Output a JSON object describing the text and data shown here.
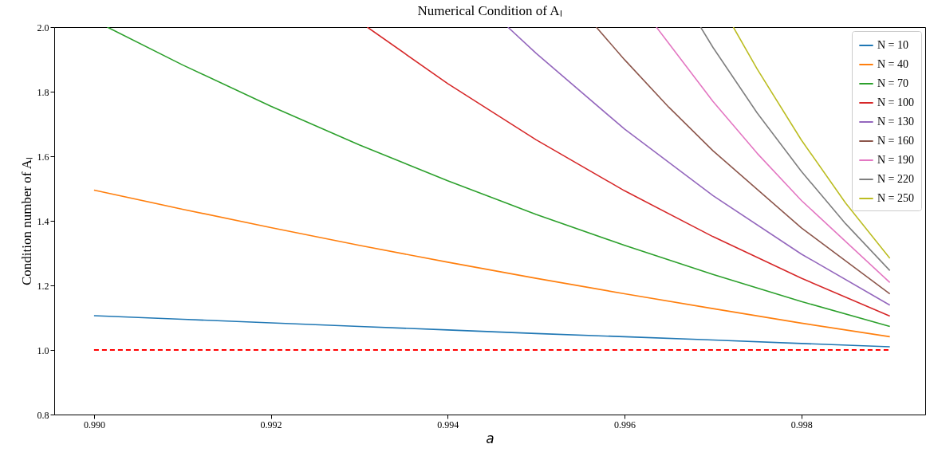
{
  "chart_data": {
    "type": "line",
    "title": "Numerical Condition of Aₗ",
    "xlabel": "a",
    "ylabel": "Condition number of Aₗ",
    "xlim": [
      0.98955,
      0.9994
    ],
    "ylim": [
      0.8,
      2.0
    ],
    "xticks": [
      {
        "value": 0.99,
        "label": "0.990"
      },
      {
        "value": 0.992,
        "label": "0.992"
      },
      {
        "value": 0.994,
        "label": "0.994"
      },
      {
        "value": 0.996,
        "label": "0.996"
      },
      {
        "value": 0.998,
        "label": "0.998"
      }
    ],
    "yticks": [
      0.8,
      {
        "value": 1.0,
        "label": "1.0"
      },
      1.2,
      1.4,
      1.6,
      1.8,
      {
        "value": 2.0,
        "label": "2.0"
      }
    ],
    "grid": false,
    "legend": "top right",
    "marker": "none",
    "line_style": "solid",
    "series": [
      {
        "name": "N = 10",
        "color": "#1f77b4",
        "x": [
          0.99,
          0.991,
          0.992,
          0.993,
          0.994,
          0.995,
          0.996,
          0.997,
          0.998,
          0.999
        ],
        "values": [
          1.106,
          1.095,
          1.084,
          1.073,
          1.062,
          1.051,
          1.041,
          1.031,
          1.02,
          1.01
        ]
      },
      {
        "name": "N = 40",
        "color": "#ff7f0e",
        "x": [
          0.99,
          0.991,
          0.992,
          0.993,
          0.994,
          0.995,
          0.996,
          0.997,
          0.998,
          0.999
        ],
        "values": [
          1.495,
          1.436,
          1.379,
          1.324,
          1.272,
          1.222,
          1.174,
          1.128,
          1.083,
          1.041
        ]
      },
      {
        "name": "N = 70",
        "color": "#2ca02c",
        "x": [
          0.99015,
          0.991,
          0.992,
          0.993,
          0.994,
          0.995,
          0.996,
          0.997,
          0.998,
          0.999
        ],
        "values": [
          2.0,
          1.883,
          1.755,
          1.635,
          1.524,
          1.42,
          1.324,
          1.234,
          1.15,
          1.073
        ]
      },
      {
        "name": "N = 100",
        "color": "#d62728",
        "x": [
          0.99309,
          0.994,
          0.995,
          0.996,
          0.997,
          0.998,
          0.999
        ],
        "values": [
          2.0,
          1.825,
          1.651,
          1.493,
          1.351,
          1.222,
          1.105
        ]
      },
      {
        "name": "N = 130",
        "color": "#9467bd",
        "x": [
          0.99468,
          0.995,
          0.996,
          0.997,
          0.998,
          0.999
        ],
        "values": [
          2.0,
          1.919,
          1.684,
          1.478,
          1.297,
          1.139
        ]
      },
      {
        "name": "N = 160",
        "color": "#8c564b",
        "x": [
          0.99568,
          0.996,
          0.9965,
          0.997,
          0.998,
          0.999
        ],
        "values": [
          2.0,
          1.899,
          1.752,
          1.617,
          1.378,
          1.174
        ]
      },
      {
        "name": "N = 190",
        "color": "#e377c2",
        "x": [
          0.99636,
          0.997,
          0.9975,
          0.998,
          0.999
        ],
        "values": [
          2.0,
          1.77,
          1.609,
          1.463,
          1.209
        ]
      },
      {
        "name": "N = 220",
        "color": "#7f7f7f",
        "x": [
          0.99686,
          0.997,
          0.9975,
          0.998,
          0.9985,
          0.999
        ],
        "values": [
          2.0,
          1.937,
          1.734,
          1.553,
          1.391,
          1.246
        ]
      },
      {
        "name": "N = 250",
        "color": "#bcbd22",
        "x": [
          0.99723,
          0.9975,
          0.998,
          0.9985,
          0.999
        ],
        "values": [
          2.0,
          1.87,
          1.65,
          1.455,
          1.284
        ]
      }
    ],
    "ref_lines": [
      {
        "axis": "y",
        "value": 1.0,
        "color": "#ff0000",
        "line_style": "dashed"
      }
    ]
  }
}
